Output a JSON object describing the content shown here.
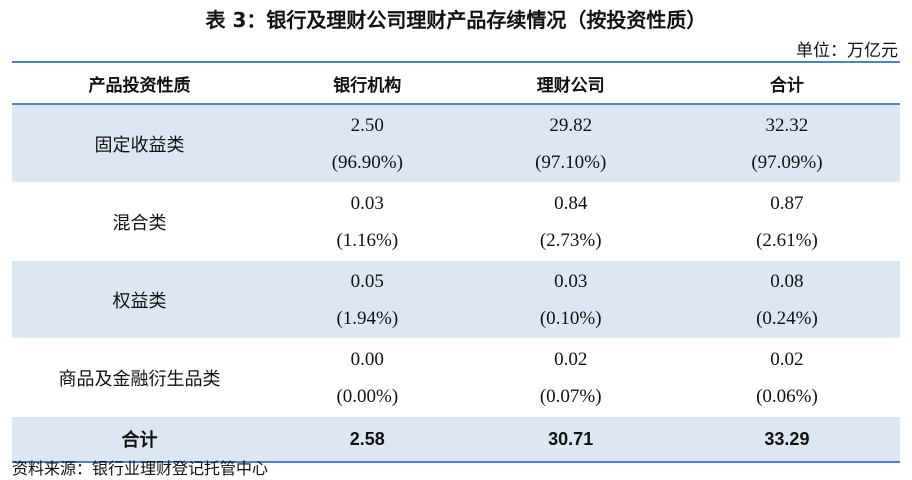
{
  "title": "表 3：银行及理财公司理财产品存续情况（按投资性质）",
  "unit": "单位：万亿元",
  "table": {
    "header": [
      "产品投资性质",
      "银行机构",
      "理财公司",
      "合计"
    ],
    "rows": [
      {
        "label": "固定收益类",
        "cells": [
          {
            "value": "2.50",
            "share": "(96.90%)"
          },
          {
            "value": "29.82",
            "share": "(97.10%)"
          },
          {
            "value": "32.32",
            "share": "(97.09%)"
          }
        ]
      },
      {
        "label": "混合类",
        "cells": [
          {
            "value": "0.03",
            "share": "(1.16%)"
          },
          {
            "value": "0.84",
            "share": "(2.73%)"
          },
          {
            "value": "0.87",
            "share": "(2.61%)"
          }
        ]
      },
      {
        "label": "权益类",
        "cells": [
          {
            "value": "0.05",
            "share": "(1.94%)"
          },
          {
            "value": "0.03",
            "share": "(0.10%)"
          },
          {
            "value": "0.08",
            "share": "(0.24%)"
          }
        ]
      },
      {
        "label": "商品及金融衍生品类",
        "cells": [
          {
            "value": "0.00",
            "share": "(0.00%)"
          },
          {
            "value": "0.02",
            "share": "(0.07%)"
          },
          {
            "value": "0.02",
            "share": "(0.06%)"
          }
        ]
      }
    ],
    "total": {
      "label": "合计",
      "cells": [
        "2.58",
        "30.71",
        "33.29"
      ]
    }
  },
  "source": "资料来源：银行业理财登记托管中心"
}
